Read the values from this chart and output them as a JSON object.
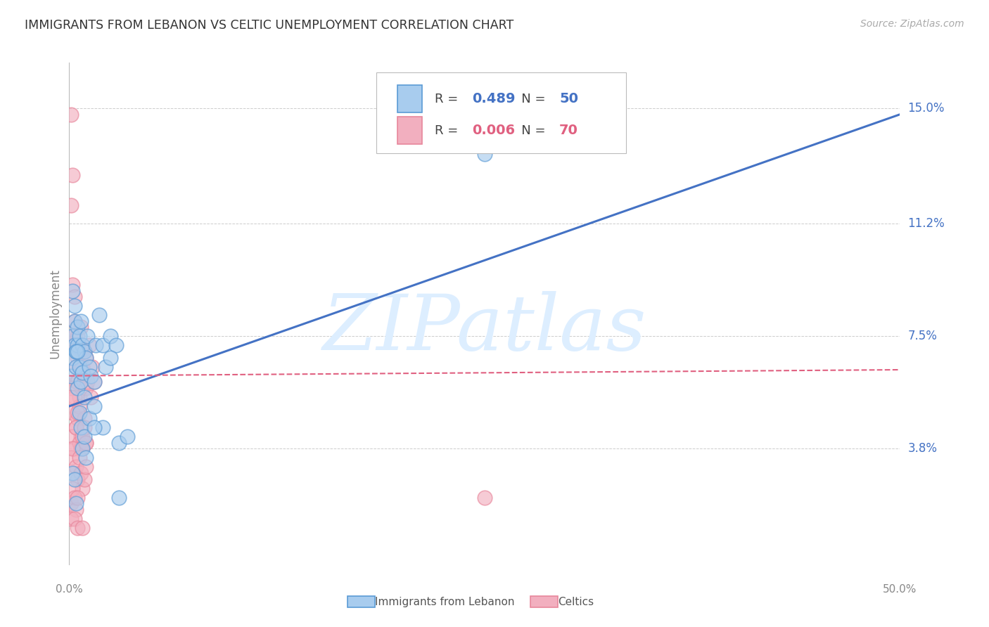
{
  "title": "IMMIGRANTS FROM LEBANON VS CELTIC UNEMPLOYMENT CORRELATION CHART",
  "source": "Source: ZipAtlas.com",
  "ylabel": "Unemployment",
  "yticks": [
    0.038,
    0.075,
    0.112,
    0.15
  ],
  "ytick_labels": [
    "3.8%",
    "7.5%",
    "11.2%",
    "15.0%"
  ],
  "xmin": 0.0,
  "xmax": 0.5,
  "ymin": 0.0,
  "ymax": 0.165,
  "blue_label": "Immigrants from Lebanon",
  "pink_label": "Celtics",
  "blue_R": "0.489",
  "blue_N": "50",
  "pink_R": "0.006",
  "pink_N": "70",
  "blue_color": "#A8CCEE",
  "pink_color": "#F2AFBF",
  "blue_edge_color": "#5B9BD5",
  "pink_edge_color": "#E8879C",
  "blue_line_color": "#4472C4",
  "pink_line_color": "#E06080",
  "legend_text_color": "#4472C4",
  "axis_label_color": "#4472C4",
  "watermark": "ZIPatlas",
  "watermark_color": "#DDEEFF",
  "blue_line_y0": 0.052,
  "blue_line_y1": 0.148,
  "pink_line_y0": 0.062,
  "pink_line_y1": 0.064,
  "blue_scatter_x": [
    0.001,
    0.002,
    0.002,
    0.003,
    0.003,
    0.004,
    0.004,
    0.005,
    0.005,
    0.005,
    0.006,
    0.006,
    0.007,
    0.007,
    0.008,
    0.008,
    0.009,
    0.009,
    0.01,
    0.011,
    0.012,
    0.013,
    0.015,
    0.016,
    0.018,
    0.02,
    0.022,
    0.025,
    0.028,
    0.002,
    0.003,
    0.004,
    0.005,
    0.006,
    0.007,
    0.008,
    0.009,
    0.01,
    0.012,
    0.015,
    0.02,
    0.025,
    0.03,
    0.035,
    0.25,
    0.002,
    0.003,
    0.004,
    0.015,
    0.03
  ],
  "blue_scatter_y": [
    0.062,
    0.068,
    0.075,
    0.072,
    0.08,
    0.065,
    0.07,
    0.058,
    0.072,
    0.078,
    0.075,
    0.065,
    0.08,
    0.06,
    0.072,
    0.063,
    0.07,
    0.055,
    0.068,
    0.075,
    0.065,
    0.062,
    0.06,
    0.072,
    0.082,
    0.072,
    0.065,
    0.075,
    0.072,
    0.09,
    0.085,
    0.07,
    0.07,
    0.05,
    0.045,
    0.038,
    0.042,
    0.035,
    0.048,
    0.052,
    0.045,
    0.068,
    0.04,
    0.042,
    0.135,
    0.03,
    0.028,
    0.02,
    0.045,
    0.022
  ],
  "pink_scatter_x": [
    0.001,
    0.001,
    0.002,
    0.002,
    0.002,
    0.003,
    0.003,
    0.003,
    0.004,
    0.004,
    0.004,
    0.005,
    0.005,
    0.005,
    0.006,
    0.006,
    0.007,
    0.007,
    0.007,
    0.008,
    0.008,
    0.009,
    0.009,
    0.01,
    0.01,
    0.011,
    0.012,
    0.013,
    0.014,
    0.015,
    0.001,
    0.002,
    0.003,
    0.004,
    0.005,
    0.006,
    0.007,
    0.008,
    0.009,
    0.01,
    0.001,
    0.002,
    0.003,
    0.004,
    0.005,
    0.006,
    0.007,
    0.008,
    0.009,
    0.01,
    0.001,
    0.002,
    0.003,
    0.004,
    0.005,
    0.006,
    0.007,
    0.008,
    0.009,
    0.01,
    0.001,
    0.002,
    0.003,
    0.004,
    0.005,
    0.25,
    0.001,
    0.003,
    0.005,
    0.008
  ],
  "pink_scatter_y": [
    0.148,
    0.118,
    0.092,
    0.128,
    0.072,
    0.08,
    0.075,
    0.088,
    0.065,
    0.07,
    0.06,
    0.075,
    0.068,
    0.06,
    0.072,
    0.055,
    0.065,
    0.078,
    0.06,
    0.07,
    0.065,
    0.062,
    0.07,
    0.058,
    0.068,
    0.06,
    0.072,
    0.055,
    0.065,
    0.06,
    0.058,
    0.05,
    0.055,
    0.045,
    0.048,
    0.052,
    0.042,
    0.038,
    0.048,
    0.04,
    0.055,
    0.042,
    0.038,
    0.045,
    0.05,
    0.04,
    0.038,
    0.042,
    0.045,
    0.04,
    0.035,
    0.038,
    0.03,
    0.032,
    0.028,
    0.035,
    0.03,
    0.025,
    0.028,
    0.032,
    0.02,
    0.025,
    0.022,
    0.018,
    0.022,
    0.022,
    0.015,
    0.015,
    0.012,
    0.012
  ]
}
